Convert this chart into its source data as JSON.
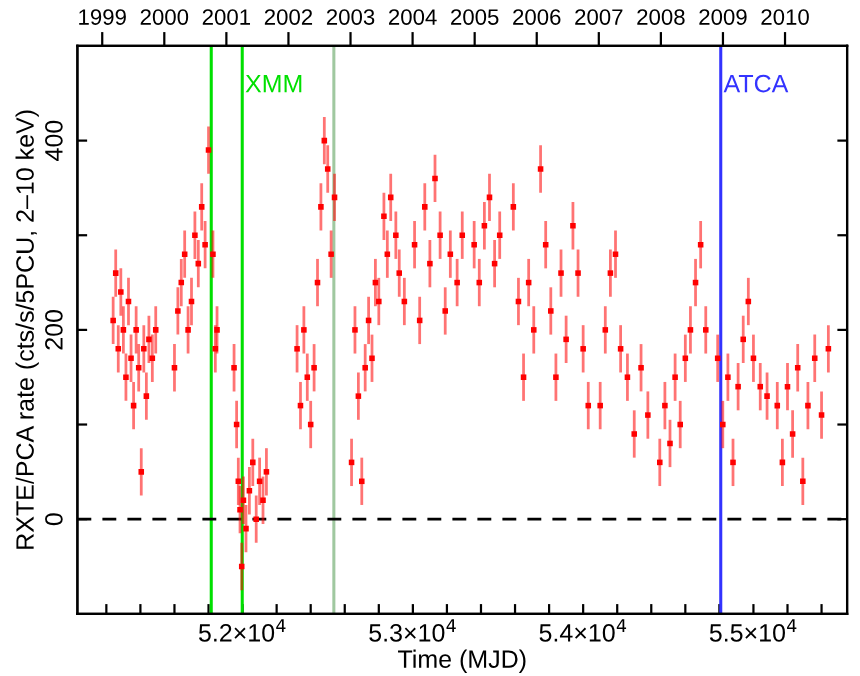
{
  "chart_data": {
    "type": "scatter",
    "xlabel": "Time (MJD)",
    "ylabel": "RXTE/PCA rate (cts/s/5PCU, 2–10 keV)",
    "xlim": [
      51030,
      55550
    ],
    "ylim": [
      -100,
      500
    ],
    "xticks": [
      {
        "value": 51200,
        "label": null
      },
      {
        "value": 51400,
        "label": null
      },
      {
        "value": 51600,
        "label": null
      },
      {
        "value": 51800,
        "label": null
      },
      {
        "value": 52000,
        "label": "5.2×10$^{4}$"
      },
      {
        "value": 52200,
        "label": null
      },
      {
        "value": 52400,
        "label": null
      },
      {
        "value": 52600,
        "label": null
      },
      {
        "value": 52800,
        "label": null
      },
      {
        "value": 53000,
        "label": "5.3×10$^{4}$"
      },
      {
        "value": 53200,
        "label": null
      },
      {
        "value": 53400,
        "label": null
      },
      {
        "value": 53600,
        "label": null
      },
      {
        "value": 53800,
        "label": null
      },
      {
        "value": 54000,
        "label": "5.4×10$^{4}$"
      },
      {
        "value": 54200,
        "label": null
      },
      {
        "value": 54400,
        "label": null
      },
      {
        "value": 54600,
        "label": null
      },
      {
        "value": 54800,
        "label": null
      },
      {
        "value": 55000,
        "label": "5.5×10$^{4}$"
      },
      {
        "value": 55200,
        "label": null
      },
      {
        "value": 55400,
        "label": null
      }
    ],
    "yticks": [
      0,
      {
        "value": 100,
        "label": null
      },
      200,
      {
        "value": 300,
        "label": null
      },
      400
    ],
    "x2lim": [
      1998.6,
      2011
    ],
    "x2ticks": [
      1999,
      2000,
      2001,
      2002,
      2003,
      2004,
      2005,
      2006,
      2007,
      2008,
      2009,
      2010
    ],
    "grid": false,
    "marker": "square",
    "ref_lines": [
      {
        "axis": "x",
        "value": 51816,
        "color": "#00e000"
      },
      {
        "axis": "x",
        "value": 51998,
        "label": "XMM",
        "color": "#00e000"
      },
      {
        "axis": "x",
        "value": 52536,
        "color": "#a0c8a0"
      },
      {
        "axis": "x",
        "value": 54808,
        "label": "ATCA",
        "color": "#3333ff"
      },
      {
        "axis": "y",
        "value": 0,
        "color": "#000000",
        "line_style": "dashed"
      }
    ],
    "series": [
      {
        "color": "#ff0000",
        "x": [
          51240,
          51255,
          51270,
          51285,
          51300,
          51315,
          51330,
          51345,
          51360,
          51375,
          51390,
          51405,
          51420,
          51435,
          51450,
          51470,
          51490,
          51600,
          51620,
          51640,
          51660,
          51680,
          51700,
          51720,
          51740,
          51760,
          51780,
          51800,
          51826,
          51840,
          51850,
          51950,
          51965,
          51975,
          51985,
          51995,
          52005,
          52020,
          52040,
          52060,
          52080,
          52100,
          52120,
          52140,
          52320,
          52340,
          52360,
          52380,
          52400,
          52420,
          52440,
          52460,
          52480,
          52500,
          52520,
          52540,
          52640,
          52660,
          52680,
          52700,
          52720,
          52740,
          52760,
          52780,
          52800,
          52830,
          52850,
          52870,
          52900,
          52920,
          52950,
          53010,
          53040,
          53070,
          53100,
          53130,
          53160,
          53190,
          53220,
          53260,
          53290,
          53360,
          53390,
          53420,
          53450,
          53480,
          53510,
          53590,
          53620,
          53650,
          53680,
          53710,
          53750,
          53780,
          53810,
          53840,
          53870,
          53900,
          53940,
          53970,
          54000,
          54030,
          54100,
          54130,
          54160,
          54190,
          54220,
          54260,
          54300,
          54340,
          54380,
          54450,
          54480,
          54510,
          54540,
          54570,
          54600,
          54630,
          54660,
          54690,
          54720,
          54790,
          54820,
          54850,
          54880,
          54910,
          54940,
          54970,
          55000,
          55040,
          55080,
          55140,
          55170,
          55200,
          55230,
          55260,
          55290,
          55320,
          55360,
          55400,
          55440
        ],
        "values": [
          210,
          260,
          180,
          240,
          200,
          150,
          230,
          170,
          120,
          200,
          160,
          50,
          180,
          130,
          190,
          170,
          200,
          160,
          220,
          250,
          280,
          200,
          230,
          300,
          270,
          330,
          290,
          390,
          280,
          180,
          200,
          160,
          100,
          40,
          10,
          -50,
          20,
          -10,
          30,
          60,
          0,
          40,
          20,
          50,
          180,
          120,
          200,
          150,
          100,
          160,
          250,
          330,
          400,
          370,
          280,
          340,
          60,
          200,
          130,
          40,
          160,
          210,
          170,
          250,
          230,
          320,
          280,
          340,
          300,
          260,
          230,
          290,
          210,
          330,
          270,
          360,
          300,
          220,
          280,
          250,
          300,
          290,
          250,
          310,
          340,
          270,
          300,
          330,
          230,
          150,
          250,
          200,
          370,
          290,
          220,
          150,
          260,
          190,
          310,
          260,
          180,
          120,
          120,
          200,
          260,
          280,
          180,
          150,
          90,
          160,
          110,
          60,
          120,
          80,
          150,
          100,
          170,
          200,
          250,
          290,
          200,
          170,
          100,
          150,
          60,
          140,
          190,
          230,
          170,
          140,
          130,
          120,
          60,
          140,
          90,
          160,
          40,
          120,
          170,
          110,
          180
        ],
        "errors": [
          25,
          25,
          25,
          25,
          25,
          25,
          25,
          25,
          25,
          25,
          25,
          25,
          25,
          25,
          25,
          25,
          25,
          25,
          25,
          25,
          25,
          25,
          25,
          25,
          25,
          25,
          25,
          25,
          25,
          25,
          25,
          25,
          25,
          25,
          25,
          25,
          25,
          25,
          25,
          25,
          25,
          25,
          25,
          25,
          25,
          25,
          25,
          25,
          25,
          25,
          25,
          25,
          25,
          25,
          25,
          25,
          25,
          25,
          25,
          25,
          25,
          25,
          25,
          25,
          25,
          25,
          25,
          25,
          25,
          25,
          25,
          25,
          25,
          25,
          25,
          25,
          25,
          25,
          25,
          25,
          25,
          25,
          25,
          25,
          25,
          25,
          25,
          25,
          25,
          25,
          25,
          25,
          25,
          25,
          25,
          25,
          25,
          25,
          25,
          25,
          25,
          25,
          25,
          25,
          25,
          25,
          25,
          25,
          25,
          25,
          25,
          25,
          25,
          25,
          25,
          25,
          25,
          25,
          25,
          25,
          25,
          25,
          25,
          25,
          25,
          25,
          25,
          25,
          25,
          25,
          25,
          25,
          25,
          25,
          25,
          25,
          25,
          25,
          25,
          25,
          25
        ]
      }
    ]
  }
}
